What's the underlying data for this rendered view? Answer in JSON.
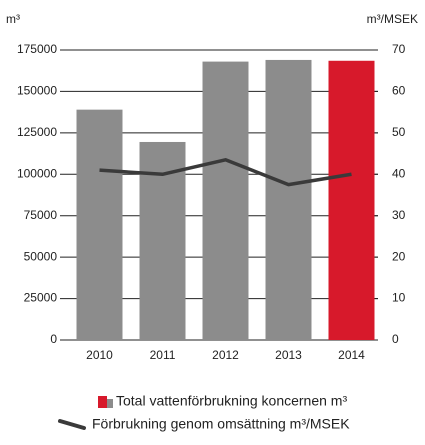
{
  "chart_data": {
    "type": "bar_line",
    "y_label": "m³",
    "y2_label": "m³/MSEK",
    "categories": [
      "2010",
      "2011",
      "2012",
      "2013",
      "2014"
    ],
    "series": [
      {
        "name": "Total vattenförbrukning koncernen m³",
        "type": "bar",
        "color": "#d7192b",
        "colors": [
          "#8c8c8c",
          "#8c8c8c",
          "#8c8c8c",
          "#8c8c8c",
          "#d7192b"
        ],
        "values": [
          139000,
          119500,
          168000,
          169000,
          168500
        ]
      },
      {
        "name": "Förbrukning genom omsättning m³/MSEK",
        "type": "line",
        "axis": "y2",
        "color": "#3a3a3a",
        "values": [
          41,
          40,
          43.5,
          37.5,
          40
        ]
      }
    ],
    "ylim": [
      0,
      175000
    ],
    "yticks": [
      0,
      25000,
      50000,
      75000,
      100000,
      125000,
      150000,
      175000
    ],
    "y2lim": [
      0,
      70
    ],
    "y2ticks": [
      0,
      10,
      20,
      30,
      40,
      50,
      60,
      70
    ],
    "grid": true,
    "legend": "bottom"
  }
}
